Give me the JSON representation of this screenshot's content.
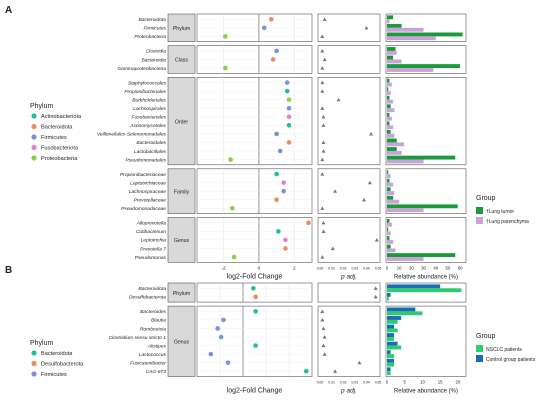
{
  "chart_data": [
    {
      "panel_label": "A",
      "type": "scatter",
      "xlabel_fc": "log2-Fold Change",
      "xlabel_p": "p adj.",
      "xlabel_ab": "Relative abundance (%)",
      "fc_ticks": [
        "-2",
        "0",
        "2"
      ],
      "p_ticks": [
        "0.00",
        "0.01",
        "0.02",
        "0.03",
        "0.04",
        "0.05"
      ],
      "ab_ticks": [
        "0",
        "10",
        "20",
        "30",
        "40",
        "50",
        "60"
      ],
      "fc_range": [
        -3.5,
        3
      ],
      "p_range": [
        0,
        0.05
      ],
      "ab_range": [
        0,
        64
      ],
      "phylum_legend": {
        "title": "Phylum",
        "items": [
          {
            "name": "Actinobacteriota",
            "color": "#1fbf9a"
          },
          {
            "name": "Bacteroidota",
            "color": "#f08a5d"
          },
          {
            "name": "Firmicutes",
            "color": "#7b93d6"
          },
          {
            "name": "Fusobacteriota",
            "color": "#e97ec7"
          },
          {
            "name": "Proteobacteria",
            "color": "#88d13f"
          }
        ]
      },
      "group_legend": {
        "title": "Group",
        "items": [
          {
            "name": "Lung tumor",
            "color": "#1a9a3a",
            "marker": "†"
          },
          {
            "name": "Lung parenchyma",
            "color": "#c9a3d8",
            "marker": "†"
          }
        ]
      },
      "groups": [
        {
          "name": "Phylum",
          "rows": [
            {
              "taxon": "Bacteroidota",
              "phylum": "Bacteroidota",
              "fc": 0.7,
              "p": 0.004,
              "ab1": 5,
              "ab2": 2
            },
            {
              "taxon": "Firmicutes",
              "phylum": "Firmicutes",
              "fc": 0.3,
              "p": 0.04,
              "ab1": 12,
              "ab2": 30
            },
            {
              "taxon": "Proteobacteria",
              "phylum": "Proteobacteria",
              "fc": -1.9,
              "p": 0.002,
              "ab1": 62,
              "ab2": 40
            }
          ]
        },
        {
          "name": "Class",
          "rows": [
            {
              "taxon": "Clostridia",
              "phylum": "Firmicutes",
              "fc": 1.0,
              "p": 0.002,
              "ab1": 7,
              "ab2": 8
            },
            {
              "taxon": "Bacteroidia",
              "phylum": "Bacteroidota",
              "fc": 0.8,
              "p": 0.004,
              "ab1": 5,
              "ab2": 12
            },
            {
              "taxon": "Gammaproteobacteria",
              "phylum": "Proteobacteria",
              "fc": -1.9,
              "p": 0.002,
              "ab1": 60,
              "ab2": 38
            }
          ]
        },
        {
          "name": "Order",
          "rows": [
            {
              "taxon": "Staphylococcales",
              "phylum": "Firmicutes",
              "fc": 1.6,
              "p": 0.002,
              "ab1": 2,
              "ab2": 4
            },
            {
              "taxon": "Propionibacteriales",
              "phylum": "Actinobacteriota",
              "fc": 1.6,
              "p": 0.002,
              "ab1": 1,
              "ab2": 3
            },
            {
              "taxon": "Burkholderiales",
              "phylum": "Proteobacteria",
              "fc": 1.7,
              "p": 0.016,
              "ab1": 2,
              "ab2": 5
            },
            {
              "taxon": "Lachnospirales",
              "phylum": "Firmicutes",
              "fc": 1.7,
              "p": 0.002,
              "ab1": 3,
              "ab2": 6
            },
            {
              "taxon": "Fusobacteriales",
              "phylum": "Fusobacteriota",
              "fc": 1.7,
              "p": 0.003,
              "ab1": 2,
              "ab2": 4
            },
            {
              "taxon": "Actinomycetales",
              "phylum": "Actinobacteriota",
              "fc": 1.7,
              "p": 0.003,
              "ab1": 2,
              "ab2": 5
            },
            {
              "taxon": "Veillonellales-Selenomonadales",
              "phylum": "Firmicutes",
              "fc": 1.0,
              "p": 0.044,
              "ab1": 3,
              "ab2": 6
            },
            {
              "taxon": "Bacteroidales",
              "phylum": "Bacteroidota",
              "fc": 1.7,
              "p": 0.003,
              "ab1": 8,
              "ab2": 14
            },
            {
              "taxon": "Lactobacillales",
              "phylum": "Firmicutes",
              "fc": 1.2,
              "p": 0.003,
              "ab1": 8,
              "ab2": 12
            },
            {
              "taxon": "Pseudomonadales",
              "phylum": "Proteobacteria",
              "fc": -1.6,
              "p": 0.002,
              "ab1": 56,
              "ab2": 30
            }
          ]
        },
        {
          "name": "Family",
          "rows": [
            {
              "taxon": "Propionibacteriaceae",
              "phylum": "Actinobacteriota",
              "fc": 1.0,
              "p": 0.002,
              "ab1": 1,
              "ab2": 3
            },
            {
              "taxon": "Leptotrichiaceae",
              "phylum": "Fusobacteriota",
              "fc": 1.4,
              "p": 0.043,
              "ab1": 2,
              "ab2": 5
            },
            {
              "taxon": "Lachnospiraceae",
              "phylum": "Firmicutes",
              "fc": 1.4,
              "p": 0.013,
              "ab1": 3,
              "ab2": 6
            },
            {
              "taxon": "Prevotellaceae",
              "phylum": "Bacteroidota",
              "fc": 1.0,
              "p": 0.038,
              "ab1": 5,
              "ab2": 10
            },
            {
              "taxon": "Pseudomonadaceae",
              "phylum": "Proteobacteria",
              "fc": -1.5,
              "p": 0.002,
              "ab1": 58,
              "ab2": 30
            }
          ]
        },
        {
          "name": "Genus",
          "rows": [
            {
              "taxon": "Alloprevotella",
              "phylum": "Bacteroidota",
              "fc": 2.8,
              "p": 0.003,
              "ab1": 2,
              "ab2": 4
            },
            {
              "taxon": "Cutibacterium",
              "phylum": "Actinobacteriota",
              "fc": 1.1,
              "p": 0.003,
              "ab1": 1,
              "ab2": 3
            },
            {
              "taxon": "Leptotrichia",
              "phylum": "Fusobacteriota",
              "fc": 1.5,
              "p": 0.049,
              "ab1": 2,
              "ab2": 5
            },
            {
              "taxon": "Prevotella 7",
              "phylum": "Bacteroidota",
              "fc": 1.5,
              "p": 0.011,
              "ab1": 3,
              "ab2": 7
            },
            {
              "taxon": "Pseudomonas",
              "phylum": "Proteobacteria",
              "fc": -1.4,
              "p": 0.002,
              "ab1": 56,
              "ab2": 30
            }
          ]
        }
      ]
    },
    {
      "panel_label": "B",
      "type": "scatter",
      "xlabel_fc": "log2-Fold Change",
      "xlabel_p": "p adj.",
      "xlabel_ab": "Relative abundance (%)",
      "fc_ticks": [],
      "p_ticks": [
        "0.00",
        "0.01",
        "0.02",
        "0.03",
        "0.04",
        "0.05"
      ],
      "ab_ticks": [
        "0",
        "5",
        "10",
        "15",
        "20"
      ],
      "fc_range": [
        -4,
        6
      ],
      "p_range": [
        0,
        0.05
      ],
      "ab_range": [
        0,
        22
      ],
      "phylum_legend": {
        "title": "Phylum",
        "items": [
          {
            "name": "Bacteroidota",
            "color": "#1fbf9a"
          },
          {
            "name": "Desulfobacterota",
            "color": "#f08a5d"
          },
          {
            "name": "Firmicutes",
            "color": "#7b93d6"
          }
        ]
      },
      "group_legend": {
        "title": "Group",
        "items": [
          {
            "name": "NSCLC patients",
            "color": "#2ecc71",
            "marker": ""
          },
          {
            "name": "Control group patients",
            "color": "#1a6fb3",
            "marker": ""
          }
        ]
      },
      "groups": [
        {
          "name": "Phylum",
          "rows": [
            {
              "taxon": "Bacteroidota",
              "phylum": "Bacteroidota",
              "fc": 0.9,
              "p": 0.048,
              "ab1": 15,
              "ab2": 21
            },
            {
              "taxon": "Desulfobacterota",
              "phylum": "Desulfobacterota",
              "fc": 1.1,
              "p": 0.048,
              "ab1": 1,
              "ab2": 0.5
            }
          ]
        },
        {
          "name": "Genus",
          "rows": [
            {
              "taxon": "Bacteroides",
              "phylum": "Bacteroidota",
              "fc": 1.1,
              "p": 0.002,
              "ab1": 8,
              "ab2": 10
            },
            {
              "taxon": "Blautia",
              "phylum": "Firmicutes",
              "fc": -1.7,
              "p": 0.002,
              "ab1": 4,
              "ab2": 3
            },
            {
              "taxon": "Romboutsia",
              "phylum": "Firmicutes",
              "fc": -2.2,
              "p": 0.003,
              "ab1": 2,
              "ab2": 3
            },
            {
              "taxon": "Clostridium sensu stricto 1",
              "phylum": "Firmicutes",
              "fc": -1.9,
              "p": 0.004,
              "ab1": 2,
              "ab2": 2
            },
            {
              "taxon": "Alistipes",
              "phylum": "Bacteroidota",
              "fc": 1.1,
              "p": 0.003,
              "ab1": 3,
              "ab2": 4
            },
            {
              "taxon": "Lactococcus",
              "phylum": "Firmicutes",
              "fc": -2.8,
              "p": 0.004,
              "ab1": 1,
              "ab2": 2
            },
            {
              "taxon": "Fusicatenibacter",
              "phylum": "Firmicutes",
              "fc": -1.3,
              "p": 0.034,
              "ab1": 2,
              "ab2": 2
            },
            {
              "taxon": "CAG-873",
              "phylum": "Bacteroidota",
              "fc": 5.5,
              "p": 0.013,
              "ab1": 1,
              "ab2": 1
            }
          ]
        }
      ]
    }
  ]
}
